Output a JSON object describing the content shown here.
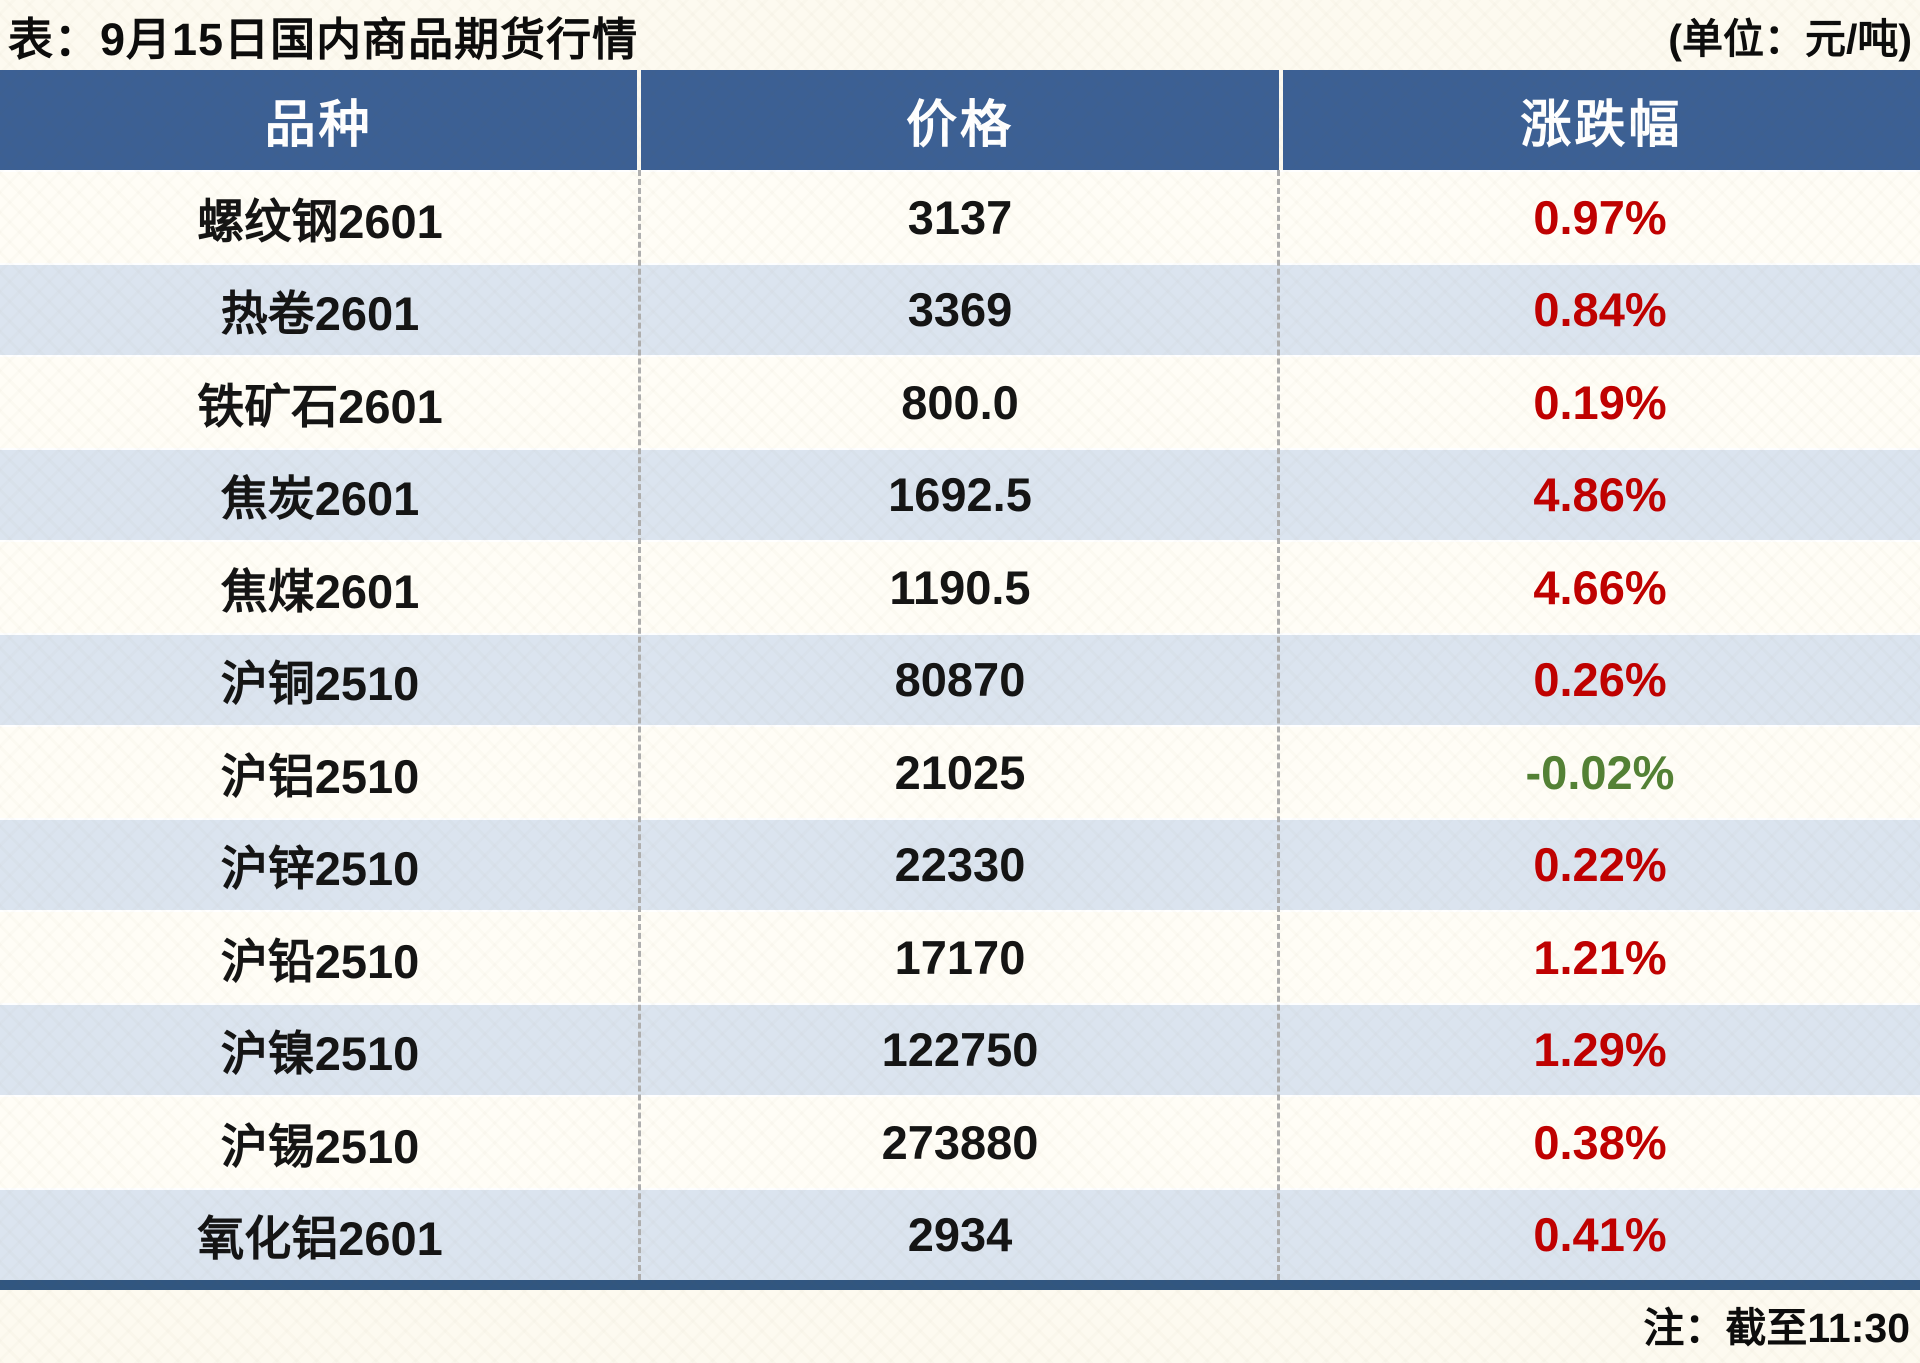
{
  "title": "表：9月15日国内商品期货行情",
  "unit_note": "(单位：元/吨)",
  "footer_note": "注：截至11:30",
  "columns": {
    "variety": "品种",
    "price": "价格",
    "change": "涨跌幅"
  },
  "colors": {
    "header_bg": "#3c6094",
    "row_bg": "#fffdf6",
    "row_alt_bg": "#dbe4ef",
    "up_red": "#c00000",
    "down_green": "#538135",
    "divider_gray": "#afafaf",
    "bottom_bar": "#315680"
  },
  "rows": [
    {
      "name": "螺纹钢2601",
      "price": "3137",
      "change": "0.97%",
      "change_color": "#c00000"
    },
    {
      "name": "热卷2601",
      "price": "3369",
      "change": "0.84%",
      "change_color": "#c00000"
    },
    {
      "name": "铁矿石2601",
      "price": "800.0",
      "change": "0.19%",
      "change_color": "#c00000"
    },
    {
      "name": "焦炭2601",
      "price": "1692.5",
      "change": "4.86%",
      "change_color": "#c00000"
    },
    {
      "name": "焦煤2601",
      "price": "1190.5",
      "change": "4.66%",
      "change_color": "#c00000"
    },
    {
      "name": "沪铜2510",
      "price": "80870",
      "change": "0.26%",
      "change_color": "#c00000"
    },
    {
      "name": "沪铝2510",
      "price": "21025",
      "change": "-0.02%",
      "change_color": "#538135"
    },
    {
      "name": "沪锌2510",
      "price": "22330",
      "change": "0.22%",
      "change_color": "#c00000"
    },
    {
      "name": "沪铅2510",
      "price": "17170",
      "change": "1.21%",
      "change_color": "#c00000"
    },
    {
      "name": "沪镍2510",
      "price": "122750",
      "change": "1.29%",
      "change_color": "#c00000"
    },
    {
      "name": "沪锡2510",
      "price": "273880",
      "change": "0.38%",
      "change_color": "#c00000"
    },
    {
      "name": "氧化铝2601",
      "price": "2934",
      "change": "0.41%",
      "change_color": "#c00000"
    }
  ],
  "chart_data": {
    "type": "table",
    "title": "表：9月15日国内商品期货行情",
    "unit": "元/吨",
    "note": "注：截至11:30",
    "columns": [
      "品种",
      "价格",
      "涨跌幅"
    ],
    "rows": [
      [
        "螺纹钢2601",
        3137,
        "0.97%"
      ],
      [
        "热卷2601",
        3369,
        "0.84%"
      ],
      [
        "铁矿石2601",
        800.0,
        "0.19%"
      ],
      [
        "焦炭2601",
        1692.5,
        "4.86%"
      ],
      [
        "焦煤2601",
        1190.5,
        "4.66%"
      ],
      [
        "沪铜2510",
        80870,
        "0.26%"
      ],
      [
        "沪铝2510",
        21025,
        "-0.02%"
      ],
      [
        "沪锌2510",
        22330,
        "0.22%"
      ],
      [
        "沪铅2510",
        17170,
        "1.21%"
      ],
      [
        "沪镍2510",
        122750,
        "1.29%"
      ],
      [
        "沪锡2510",
        273880,
        "0.38%"
      ],
      [
        "氧化铝2601",
        2934,
        "0.41%"
      ]
    ]
  }
}
